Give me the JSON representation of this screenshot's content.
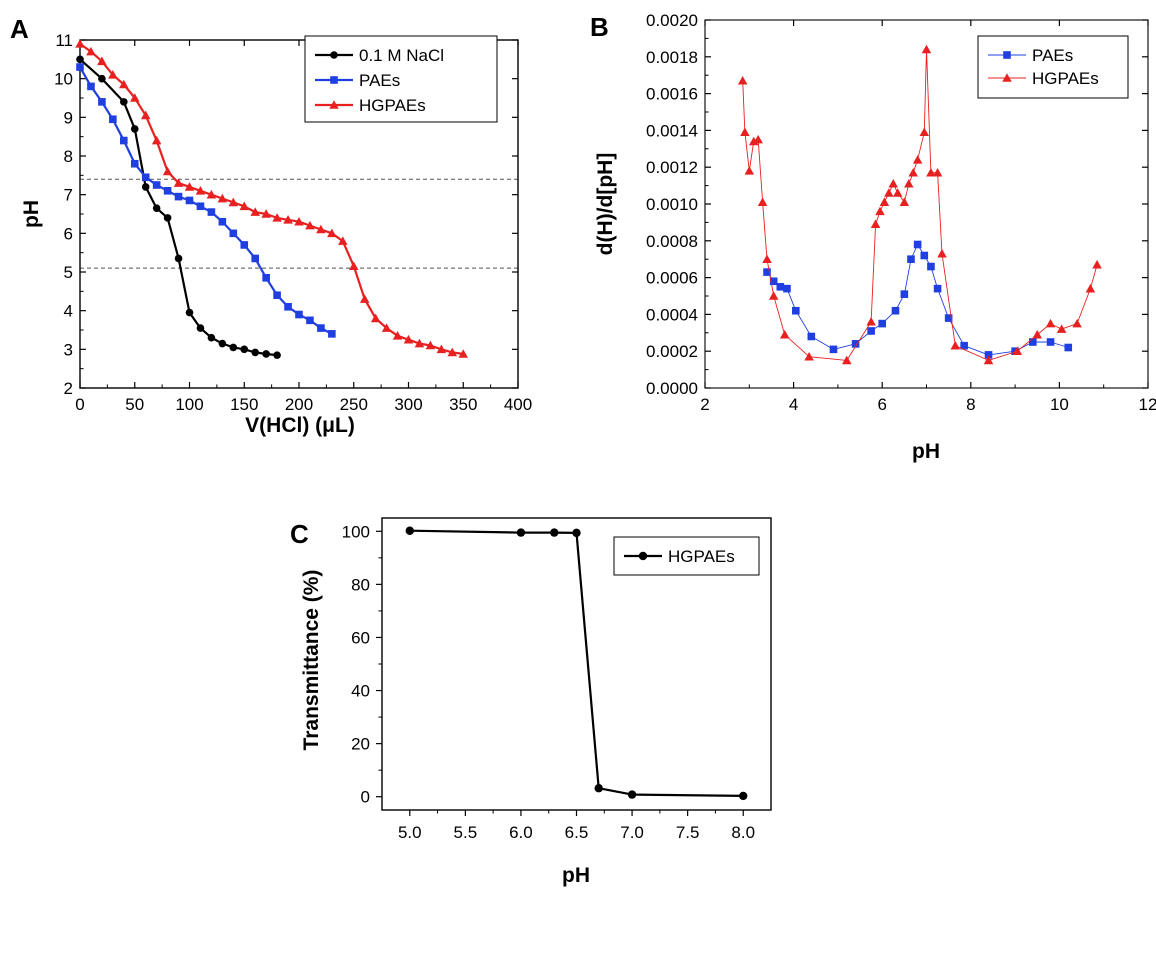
{
  "chart_data": [
    {
      "panel": "A",
      "type": "line",
      "title": "",
      "xlabel": "V(HCl) (μL)",
      "ylabel": "pH",
      "xlim": [
        0,
        400
      ],
      "ylim": [
        2,
        11
      ],
      "x_ticks": [
        "0",
        "50",
        "100",
        "150",
        "200",
        "250",
        "300",
        "350",
        "400"
      ],
      "y_ticks": [
        "2",
        "3",
        "4",
        "5",
        "6",
        "7",
        "8",
        "9",
        "10",
        "11"
      ],
      "grid": false,
      "legend_position": "top-right",
      "reference_lines_y": [
        7.4,
        5.1
      ],
      "series": [
        {
          "name": "0.1 M NaCl",
          "color": "#000000",
          "marker": "circle",
          "x": [
            0,
            20,
            40,
            50,
            60,
            70,
            80,
            90,
            100,
            110,
            120,
            130,
            140,
            150,
            160,
            170,
            180
          ],
          "y": [
            10.5,
            10.0,
            9.4,
            8.7,
            7.2,
            6.65,
            6.4,
            5.35,
            3.95,
            3.55,
            3.3,
            3.15,
            3.05,
            3.0,
            2.92,
            2.88,
            2.85
          ]
        },
        {
          "name": "PAEs",
          "color": "#1f3fe0",
          "marker": "square",
          "x": [
            0,
            10,
            20,
            30,
            40,
            50,
            60,
            70,
            80,
            90,
            100,
            110,
            120,
            130,
            140,
            150,
            160,
            170,
            180,
            190,
            200,
            210,
            220,
            230
          ],
          "y": [
            10.3,
            9.8,
            9.4,
            8.95,
            8.4,
            7.8,
            7.45,
            7.25,
            7.1,
            6.95,
            6.85,
            6.7,
            6.55,
            6.3,
            6.0,
            5.7,
            5.35,
            4.85,
            4.4,
            4.1,
            3.9,
            3.75,
            3.55,
            3.4
          ]
        },
        {
          "name": "HGPAEs",
          "color": "#e82020",
          "marker": "triangle",
          "x": [
            0,
            10,
            20,
            30,
            40,
            50,
            60,
            70,
            80,
            90,
            100,
            110,
            120,
            130,
            140,
            150,
            160,
            170,
            180,
            190,
            200,
            210,
            220,
            230,
            240,
            250,
            260,
            270,
            280,
            290,
            300,
            310,
            320,
            330,
            340,
            350
          ],
          "y": [
            10.9,
            10.7,
            10.45,
            10.1,
            9.85,
            9.5,
            9.05,
            8.4,
            7.6,
            7.3,
            7.2,
            7.1,
            7.0,
            6.9,
            6.8,
            6.7,
            6.55,
            6.5,
            6.4,
            6.35,
            6.3,
            6.2,
            6.1,
            6.0,
            5.8,
            5.15,
            4.3,
            3.8,
            3.55,
            3.35,
            3.25,
            3.15,
            3.1,
            3.0,
            2.92,
            2.88
          ]
        }
      ]
    },
    {
      "panel": "B",
      "type": "line",
      "title": "",
      "xlabel": "pH",
      "ylabel": "d(H)/d[pH]",
      "xlim": [
        2,
        12
      ],
      "ylim": [
        0,
        0.002
      ],
      "x_ticks": [
        "2",
        "4",
        "6",
        "8",
        "10",
        "12"
      ],
      "y_ticks": [
        "0.0000",
        "0.0002",
        "0.0004",
        "0.0006",
        "0.0008",
        "0.0010",
        "0.0012",
        "0.0014",
        "0.0016",
        "0.0018",
        "0.0020"
      ],
      "grid": false,
      "legend_position": "top-right",
      "series": [
        {
          "name": "PAEs",
          "color": "#1f3fe0",
          "marker": "square",
          "x": [
            3.4,
            3.55,
            3.7,
            3.85,
            4.05,
            4.4,
            4.9,
            5.4,
            5.75,
            6.0,
            6.3,
            6.5,
            6.65,
            6.8,
            6.95,
            7.1,
            7.25,
            7.5,
            7.85,
            8.4,
            9.0,
            9.4,
            9.8,
            10.2
          ],
          "y": [
            0.00063,
            0.00058,
            0.00055,
            0.00054,
            0.00042,
            0.00028,
            0.00021,
            0.00024,
            0.00031,
            0.00035,
            0.00042,
            0.00051,
            0.0007,
            0.00078,
            0.00072,
            0.00066,
            0.00054,
            0.00038,
            0.00023,
            0.00018,
            0.0002,
            0.00025,
            0.00025,
            0.00022
          ]
        },
        {
          "name": "HGPAEs",
          "color": "#e82020",
          "marker": "triangle",
          "x": [
            2.85,
            2.9,
            3.0,
            3.1,
            3.2,
            3.3,
            3.4,
            3.55,
            3.8,
            4.35,
            5.2,
            5.75,
            5.85,
            5.95,
            6.05,
            6.15,
            6.25,
            6.35,
            6.5,
            6.6,
            6.7,
            6.8,
            6.95,
            7.0,
            7.1,
            7.25,
            7.35,
            7.65,
            8.4,
            9.05,
            9.5,
            9.8,
            10.05,
            10.4,
            10.7,
            10.85
          ],
          "y": [
            0.00167,
            0.00139,
            0.00118,
            0.00134,
            0.00135,
            0.00101,
            0.0007,
            0.0005,
            0.00029,
            0.00017,
            0.00015,
            0.00036,
            0.00089,
            0.00096,
            0.00101,
            0.00106,
            0.00111,
            0.00106,
            0.00101,
            0.00111,
            0.00117,
            0.00124,
            0.00139,
            0.00184,
            0.00117,
            0.00117,
            0.00073,
            0.00023,
            0.00015,
            0.0002,
            0.00029,
            0.00035,
            0.00032,
            0.00035,
            0.00054,
            0.00067
          ]
        }
      ]
    },
    {
      "panel": "C",
      "type": "line",
      "title": "",
      "xlabel": "pH",
      "ylabel": "Transmittance (%)",
      "xlim": [
        4.75,
        8.25
      ],
      "ylim": [
        -5,
        105
      ],
      "x_ticks": [
        "5.0",
        "5.5",
        "6.0",
        "6.5",
        "7.0",
        "7.5",
        "8.0"
      ],
      "y_ticks": [
        "0",
        "20",
        "40",
        "60",
        "80",
        "100"
      ],
      "grid": false,
      "legend_position": "top-right",
      "series": [
        {
          "name": "HGPAEs",
          "color": "#000000",
          "marker": "circle",
          "x": [
            5.0,
            6.0,
            6.3,
            6.5,
            6.7,
            7.0,
            8.0
          ],
          "y": [
            100.2,
            99.5,
            99.5,
            99.4,
            3.2,
            0.8,
            0.3
          ]
        }
      ]
    }
  ]
}
